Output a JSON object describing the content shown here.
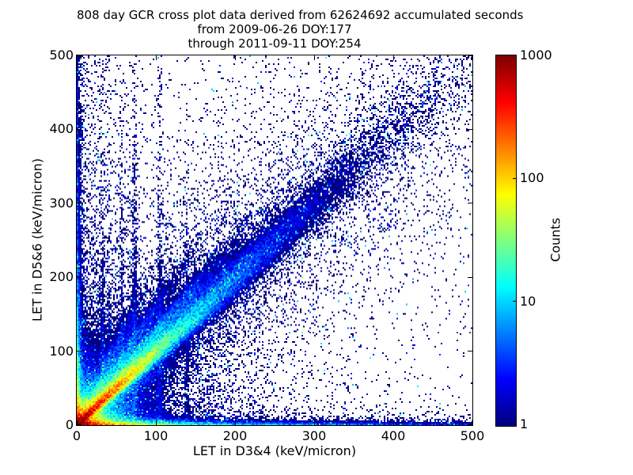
{
  "chart_data": {
    "type": "heatmap",
    "title_lines": [
      "808 day GCR cross plot data derived from 62624692 accumulated seconds",
      "from 2009-06-26 DOY:177",
      "through 2011-09-11 DOY:254"
    ],
    "xlabel": "LET in D3&4 (keV/micron)",
    "ylabel": "LET in D5&6 (keV/micron)",
    "xlim": [
      0,
      500
    ],
    "ylim": [
      0,
      500
    ],
    "xticks": [
      0,
      100,
      200,
      300,
      400,
      500
    ],
    "yticks": [
      0,
      100,
      200,
      300,
      400,
      500
    ],
    "grid": false,
    "colorbar": {
      "label": "Counts",
      "scale": "log",
      "min": 1,
      "max": 1000,
      "ticks": [
        1000,
        100,
        10,
        1
      ],
      "colormap": "jet",
      "color_min": "#00007f",
      "color_10": "#00d4ff",
      "color_100": "#ffd400",
      "color_max": "#7f0000"
    },
    "bins": [
      250,
      234
    ],
    "seed": 987654321,
    "features": {
      "origin_blob": [
        [
          1500,
          7
        ],
        [
          150,
          14
        ],
        [
          12,
          30
        ],
        [
          2,
          60
        ]
      ],
      "diag_streak": {
        "amps": [
          [
            900,
            40
          ],
          [
            40,
            110
          ],
          [
            3,
            230
          ]
        ],
        "width": [
          1.2,
          0.035
        ]
      },
      "diag_band": {
        "amp": 1.1,
        "decay": 260,
        "width": [
          8,
          0.16
        ]
      },
      "fan_streaks": [
        {
          "slope": 1.25,
          "amp": 110,
          "decay": 60,
          "width": [
            2,
            0.02
          ]
        },
        {
          "slope": 1.6,
          "amp": 45,
          "decay": 55,
          "width": [
            2,
            0.02
          ]
        },
        {
          "slope": 2.1,
          "amp": 22,
          "decay": 50,
          "width": [
            2,
            0.02
          ]
        },
        {
          "slope": 0.72,
          "amp": 18,
          "decay": 40,
          "width": [
            2,
            0.02
          ]
        }
      ],
      "bottom_band": {
        "amps": [
          [
            800,
            26
          ],
          [
            25,
            120
          ],
          [
            6,
            500
          ]
        ],
        "base": 1.2,
        "hscale": 3,
        "edge_line": {
          "amp": 120,
          "decay": 60,
          "h": 1.8
        },
        "halo": {
          "amp": 0.5,
          "h": 25,
          "xdecay": 300
        }
      },
      "left_band": {
        "amps": [
          [
            120,
            50
          ],
          [
            12,
            150
          ],
          [
            2.5,
            600
          ]
        ],
        "base": 0.8,
        "wscale": 2.2,
        "halo": {
          "amp": 0.9,
          "w": 26,
          "ydecay": 500
        }
      },
      "striations": [
        [
          33,
          2.5,
          150,
          1.5
        ],
        [
          41,
          1.8,
          120,
          1.5
        ],
        [
          50,
          1.2,
          100,
          1.5
        ],
        [
          57,
          2.2,
          160,
          1.8
        ],
        [
          66,
          1.5,
          130,
          1.5
        ],
        [
          73,
          2.8,
          200,
          2
        ],
        [
          105,
          1.2,
          280,
          2
        ],
        [
          140,
          0.7,
          220,
          2
        ]
      ],
      "background": {
        "radial": [
          [
            0.5,
            100
          ],
          [
            0.08,
            240
          ]
        ],
        "base": 0.012,
        "band_halo": {
          "amp": 0.05,
          "width": 120,
          "decay": 350
        }
      }
    }
  }
}
